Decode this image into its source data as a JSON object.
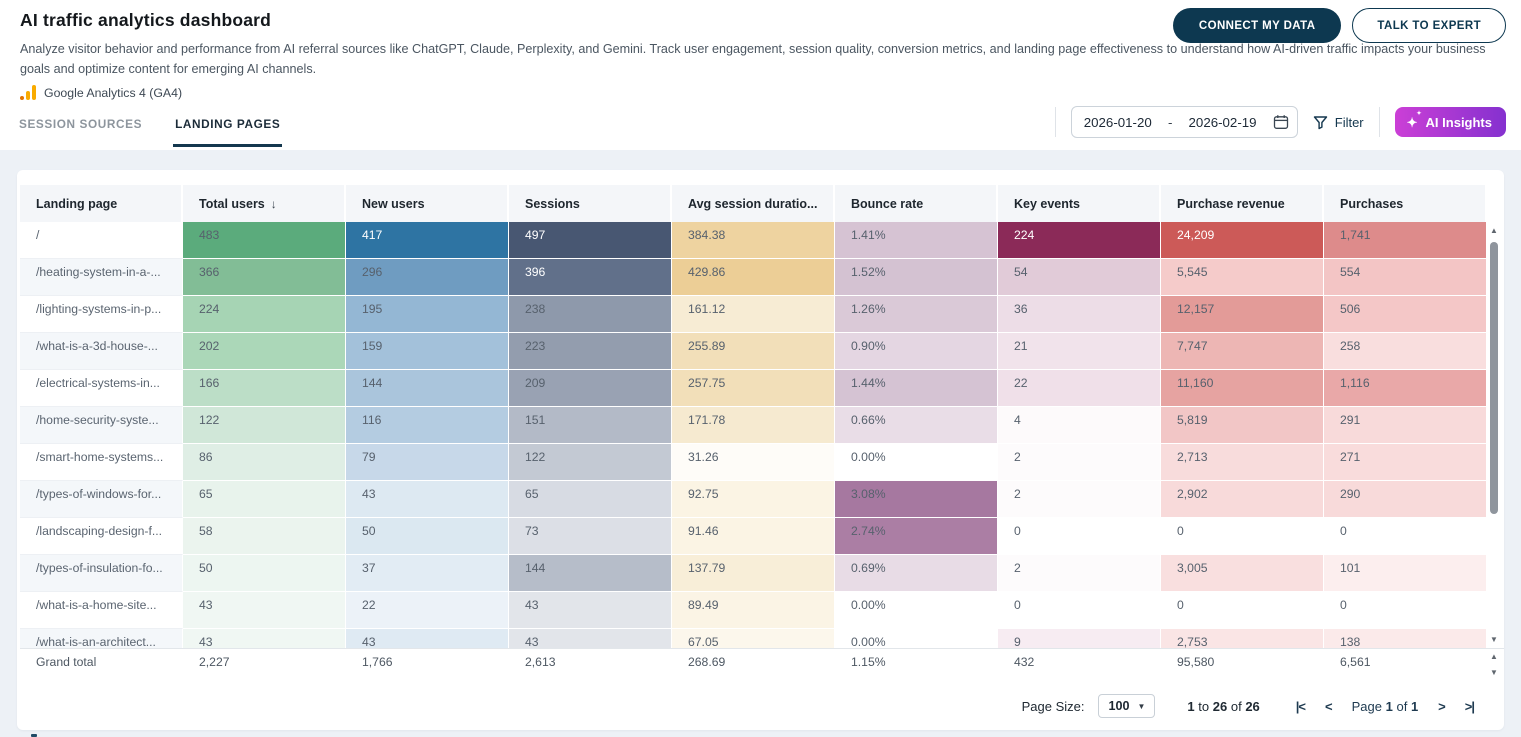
{
  "header": {
    "title": "AI traffic analytics dashboard",
    "description": "Analyze visitor behavior and performance from AI referral sources like ChatGPT, Claude, Perplexity, and Gemini. Track user engagement, session quality, conversion metrics, and landing page effectiveness to understand how AI-driven traffic impacts your business goals and optimize content for emerging AI channels.",
    "source_label": "Google Analytics 4 (GA4)",
    "connect_button": "CONNECT MY DATA",
    "expert_button": "TALK TO EXPERT"
  },
  "tabs": [
    {
      "label": "SESSION SOURCES",
      "active": false
    },
    {
      "label": "LANDING PAGES",
      "active": true
    }
  ],
  "controls": {
    "date_start": "2026-01-20",
    "date_separator": "-",
    "date_end": "2026-02-19",
    "filter_label": "Filter",
    "ai_insights_label": "AI Insights"
  },
  "icons": {
    "sort_desc": "↓",
    "dropdown": "▼",
    "scroll_up": "▲",
    "scroll_down": "▼",
    "pager_first": "|<",
    "pager_prev": "<",
    "pager_next": ">",
    "pager_last": ">|",
    "sparkle": "✦"
  },
  "colors": {
    "navy": "#0d3850",
    "tab_underline": "#14374e",
    "ai_gradient_start": "#cb3fd6",
    "ai_gradient_end": "#8531cf",
    "ga_orange": "#f9ab00",
    "ga_orange_dark": "#e37400",
    "page_background": "#edf1f6",
    "header_cell_background": "#f4f6f9"
  },
  "table": {
    "columns": [
      {
        "label": "Landing page",
        "key": "landing_page",
        "sorted": false
      },
      {
        "label": "Total users",
        "key": "total_users",
        "sorted": true
      },
      {
        "label": "New users",
        "key": "new_users",
        "sorted": false
      },
      {
        "label": "Sessions",
        "key": "sessions",
        "sorted": false
      },
      {
        "label": "Avg session duratio...",
        "key": "avg_session_duration",
        "sorted": false
      },
      {
        "label": "Bounce rate",
        "key": "bounce_rate",
        "sorted": false
      },
      {
        "label": "Key events",
        "key": "key_events",
        "sorted": false
      },
      {
        "label": "Purchase revenue",
        "key": "purchase_revenue",
        "sorted": false
      },
      {
        "label": "Purchases",
        "key": "purchases",
        "sorted": false
      }
    ],
    "rows": [
      {
        "page": "/",
        "values": [
          "483",
          "417",
          "497",
          "384.38",
          "1.41%",
          "224",
          "24,209",
          "1,741"
        ],
        "colors": [
          "#5bab7c",
          "#2e74a3",
          "#485772",
          "#eed3a0",
          "#d6c3d3",
          "#8b2a58",
          "#cc5a58",
          "#dd8b8b"
        ],
        "white": [
          1,
          2,
          5,
          6
        ]
      },
      {
        "page": "/heating-system-in-a-...",
        "values": [
          "366",
          "296",
          "396",
          "429.86",
          "1.52%",
          "54",
          "5,545",
          "554"
        ],
        "colors": [
          "#82bd96",
          "#6f9cc1",
          "#61708a",
          "#ecce96",
          "#d4c2d2",
          "#e1cbd8",
          "#f5cbca",
          "#f3c5c5"
        ],
        "white": [
          2
        ]
      },
      {
        "page": "/lighting-systems-in-p...",
        "values": [
          "224",
          "195",
          "238",
          "161.12",
          "1.26%",
          "36",
          "12,157",
          "506"
        ],
        "colors": [
          "#a6d4b4",
          "#94b7d4",
          "#8e99ab",
          "#f7ecd4",
          "#dac9d7",
          "#eddde7",
          "#e39b98",
          "#f4c7c7"
        ],
        "white": []
      },
      {
        "page": "/what-is-a-3d-house-...",
        "values": [
          "202",
          "159",
          "223",
          "255.89",
          "0.90%",
          "21",
          "7,747",
          "258"
        ],
        "colors": [
          "#abd7b8",
          "#a3c1da",
          "#939dae",
          "#f2dfb9",
          "#e4d6e2",
          "#f1e3eb",
          "#edb6b4",
          "#f9dede"
        ],
        "white": []
      },
      {
        "page": "/electrical-systems-in...",
        "values": [
          "166",
          "144",
          "209",
          "257.75",
          "1.44%",
          "22",
          "11,160",
          "1,116"
        ],
        "colors": [
          "#bcdec7",
          "#aac5dc",
          "#99a2b3",
          "#f2dfb9",
          "#d5c3d3",
          "#f0e0e9",
          "#e6a3a1",
          "#e9a8a8"
        ],
        "white": []
      },
      {
        "page": "/home-security-syste...",
        "values": [
          "122",
          "116",
          "151",
          "171.78",
          "0.66%",
          "4",
          "5,819",
          "291"
        ],
        "colors": [
          "#d0e7d8",
          "#b4cce1",
          "#b3bac7",
          "#f6ead0",
          "#e9dde7",
          "#fdfafb",
          "#f2c6c6",
          "#f8dada"
        ],
        "white": []
      },
      {
        "page": "/smart-home-systems...",
        "values": [
          "86",
          "79",
          "122",
          "31.26",
          "0.00%",
          "2",
          "2,713",
          "271"
        ],
        "colors": [
          "#dfeee5",
          "#c7d8e9",
          "#c3c9d3",
          "#fefcf8",
          "#ffffff",
          "#fdfbfc",
          "#f8dcdc",
          "#f9dcdc"
        ],
        "white": []
      },
      {
        "page": "/types-of-windows-for...",
        "values": [
          "65",
          "43",
          "65",
          "92.75",
          "3.08%",
          "2",
          "2,902",
          "290"
        ],
        "colors": [
          "#e8f3ec",
          "#dde9f2",
          "#d7dbe3",
          "#fbf4e4",
          "#a678a0",
          "#fdfbfc",
          "#f8dada",
          "#f8dada"
        ],
        "white": []
      },
      {
        "page": "/landscaping-design-f...",
        "values": [
          "58",
          "50",
          "73",
          "91.46",
          "2.74%",
          "0",
          "0",
          "0"
        ],
        "colors": [
          "#ebf4ee",
          "#dbe8f1",
          "#dcdfe6",
          "#fbf4e4",
          "#ab7ea4",
          "#ffffff",
          "#ffffff",
          "#ffffff"
        ],
        "white": []
      },
      {
        "page": "/types-of-insulation-fo...",
        "values": [
          "50",
          "37",
          "144",
          "137.79",
          "0.69%",
          "2",
          "3,005",
          "101"
        ],
        "colors": [
          "#edf6f1",
          "#e2ecf4",
          "#b6bdc9",
          "#f8eed8",
          "#e8dce6",
          "#fdfbfc",
          "#f9dfdf",
          "#fceeee"
        ],
        "white": []
      },
      {
        "page": "/what-is-a-home-site...",
        "values": [
          "43",
          "22",
          "43",
          "89.49",
          "0.00%",
          "0",
          "0",
          "0"
        ],
        "colors": [
          "#f0f7f3",
          "#ecf2f8",
          "#e2e5ea",
          "#fbf4e5",
          "#ffffff",
          "#ffffff",
          "#ffffff",
          "#ffffff"
        ],
        "white": []
      },
      {
        "page": "/what-is-an-architect...",
        "values": [
          "43",
          "43",
          "43",
          "67.05",
          "0.00%",
          "9",
          "2,753",
          "138"
        ],
        "colors": [
          "#f0f7f3",
          "#dfeaf3",
          "#e2e5ea",
          "#fcf7ec",
          "#ffffff",
          "#f7ecf2",
          "#fae5e5",
          "#fbeaea"
        ],
        "white": []
      }
    ],
    "grand_total": {
      "label": "Grand total",
      "values": [
        "2,227",
        "1,766",
        "2,613",
        "268.69",
        "1.15%",
        "432",
        "95,580",
        "6,561"
      ]
    }
  },
  "pagination": {
    "page_size_label": "Page Size:",
    "page_size_value": "100",
    "range_start": "1",
    "word_to": "to",
    "range_end": "26",
    "word_of": "of",
    "range_total": "26",
    "word_page": "Page",
    "current_page": "1",
    "word_of2": "of",
    "total_pages": "1"
  }
}
